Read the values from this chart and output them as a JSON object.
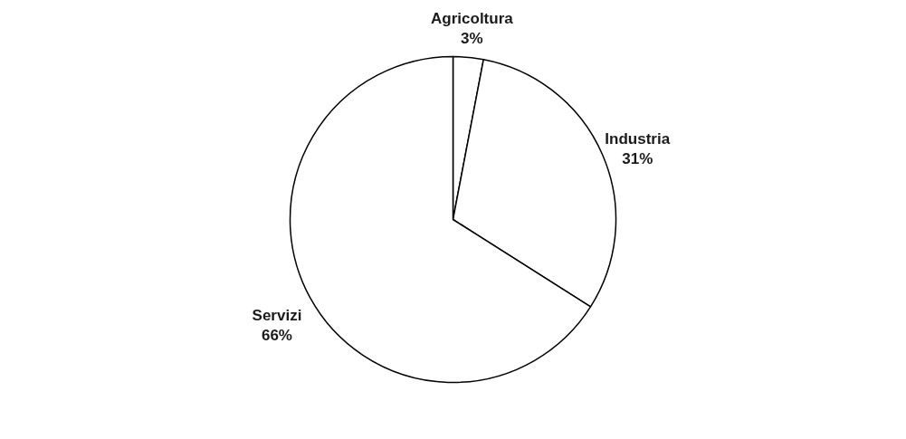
{
  "chart_data": {
    "type": "pie",
    "categories": [
      "Agricoltura",
      "Industria",
      "Servizi"
    ],
    "values": [
      3,
      31,
      66
    ],
    "value_labels": [
      "3%",
      "31%",
      "66%"
    ],
    "colors": [
      "#ffffff",
      "#ffffff",
      "#ffffff"
    ],
    "legend": false
  }
}
